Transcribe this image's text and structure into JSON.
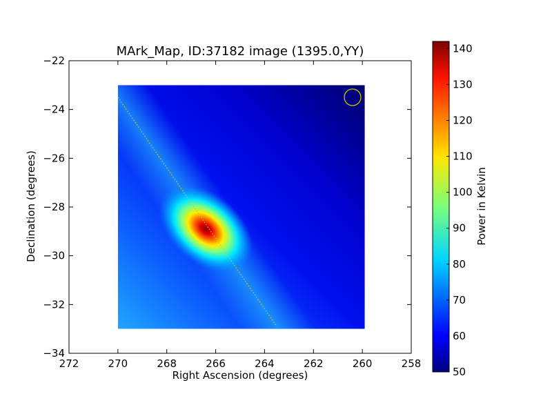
{
  "chart_data": {
    "type": "heatmap",
    "title": "MArk_Map, ID:37182 image (1395.0,YY)",
    "xlabel": "Right Ascension (degrees)",
    "ylabel": "Declination (degrees)",
    "xlim": [
      272,
      258
    ],
    "ylim": [
      -34,
      -22
    ],
    "xticks": [
      "272",
      "270",
      "268",
      "266",
      "264",
      "262",
      "260",
      "258"
    ],
    "yticks": [
      "−34",
      "−32",
      "−30",
      "−28",
      "−26",
      "−24",
      "−22"
    ],
    "image_extent": {
      "ra": [
        270,
        259.9
      ],
      "dec": [
        -33,
        -23
      ]
    },
    "colormap": "jet",
    "colorbar": {
      "label": "Power in Kelvin",
      "range": [
        50,
        142
      ],
      "ticks": [
        "50",
        "60",
        "70",
        "80",
        "90",
        "100",
        "110",
        "120",
        "130",
        "140"
      ]
    },
    "hotspot": {
      "ra": 266.4,
      "dec": -28.9,
      "peak": 142
    },
    "galactic_plane_line": {
      "from": [
        270,
        -23.5
      ],
      "to": [
        263.5,
        -32.9
      ],
      "color": "#c8c832"
    },
    "beam_circle": {
      "ra": 260.4,
      "dec": -23.5,
      "color": "#c8c800"
    },
    "grid": false
  }
}
